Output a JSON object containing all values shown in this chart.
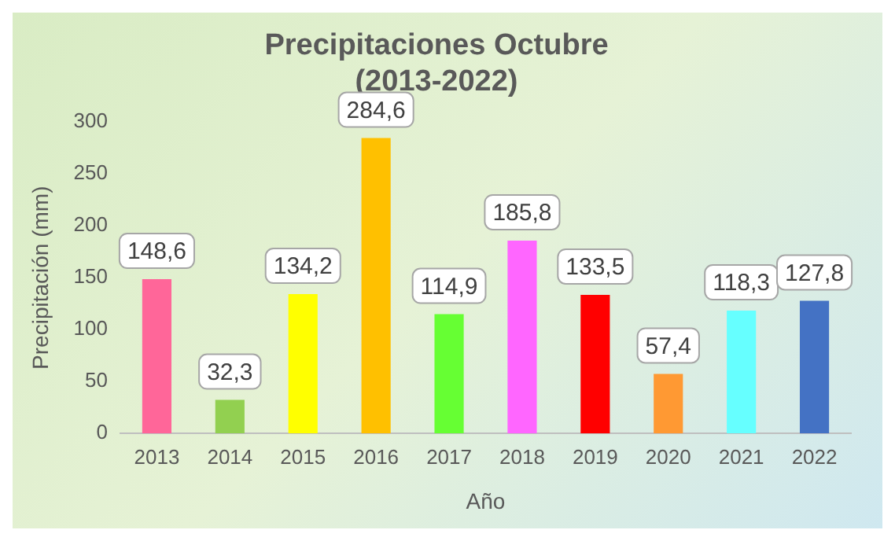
{
  "chart_data": {
    "type": "bar",
    "title": "Precipitaciones Octubre",
    "subtitle": "(2013-2022)",
    "xlabel": "Año",
    "ylabel": "Precipitación (mm)",
    "categories": [
      "2013",
      "2014",
      "2015",
      "2016",
      "2017",
      "2018",
      "2019",
      "2020",
      "2021",
      "2022"
    ],
    "values": [
      148.6,
      32.3,
      134.2,
      284.6,
      114.9,
      185.8,
      133.5,
      57.4,
      118.3,
      127.8
    ],
    "value_labels": [
      "148,6",
      "32,3",
      "134,2",
      "284,6",
      "114,9",
      "185,8",
      "133,5",
      "57,4",
      "118,3",
      "127,8"
    ],
    "colors": [
      "#ff6699",
      "#92d050",
      "#ffff00",
      "#ffc000",
      "#66ff33",
      "#ff66ff",
      "#ff0000",
      "#ff9933",
      "#66ffff",
      "#4472c4"
    ],
    "ylim": [
      0,
      300
    ],
    "yticks": [
      0,
      50,
      100,
      150,
      200,
      250,
      300
    ],
    "grid": false,
    "legend": false
  }
}
